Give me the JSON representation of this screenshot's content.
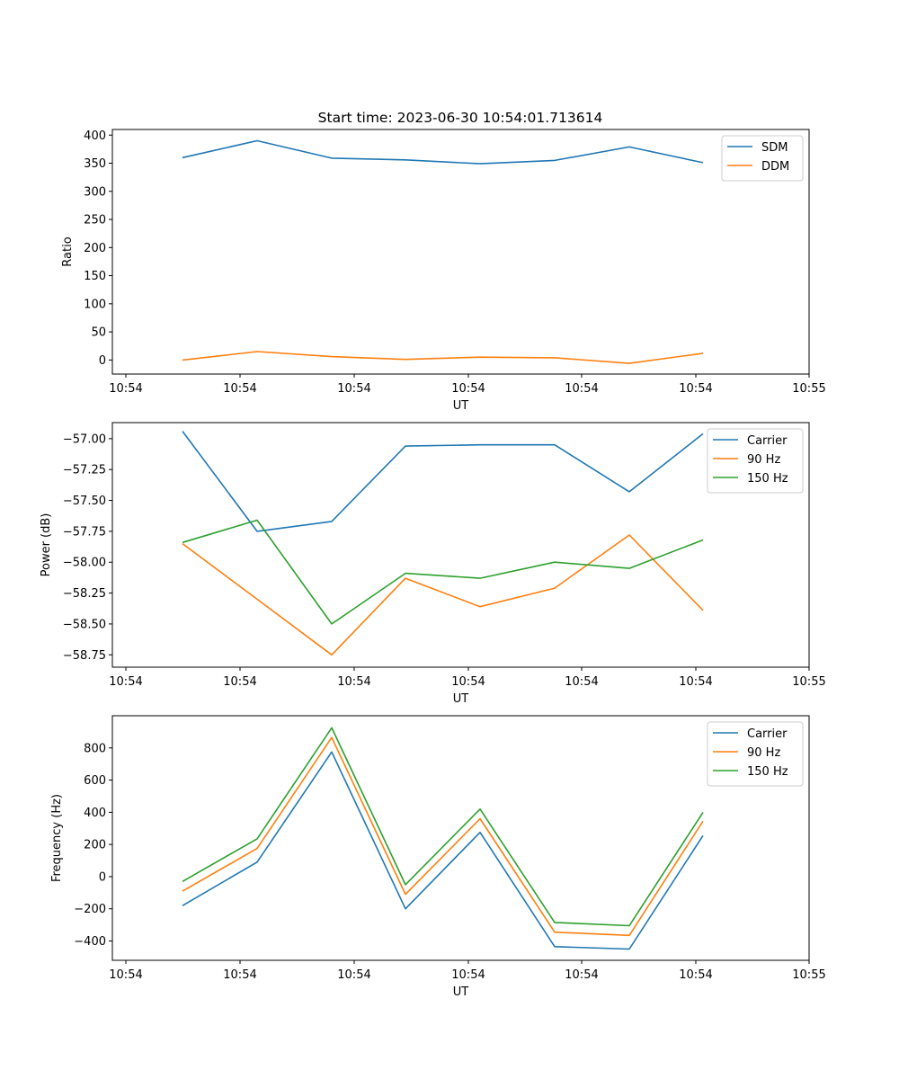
{
  "title": "Start time: 2023-06-30 10:54:01.713614",
  "colors": {
    "blue": "#1f77b4",
    "orange": "#ff7f0e",
    "green": "#2ca02c"
  },
  "chart_data": [
    {
      "type": "line",
      "xlabel": "UT",
      "ylabel": "Ratio",
      "x_tick_labels": [
        "10:54",
        "10:54",
        "10:54",
        "10:54",
        "10:54",
        "10:54",
        "10:55"
      ],
      "y_ticks": [
        0,
        50,
        100,
        150,
        200,
        250,
        300,
        350,
        400
      ],
      "y_tick_labels": [
        "0",
        "50",
        "100",
        "150",
        "200",
        "250",
        "300",
        "350",
        "400"
      ],
      "ylim": [
        -25,
        410
      ],
      "legend": "top-right",
      "grid": false,
      "series": [
        {
          "name": "SDM",
          "color": "#1f77b4",
          "values": [
            360,
            390,
            359,
            356,
            349,
            355,
            379,
            351
          ]
        },
        {
          "name": "DDM",
          "color": "#ff7f0e",
          "values": [
            0,
            15,
            6,
            1,
            5,
            4,
            -6,
            12
          ]
        }
      ]
    },
    {
      "type": "line",
      "xlabel": "UT",
      "ylabel": "Power (dB)",
      "x_tick_labels": [
        "10:54",
        "10:54",
        "10:54",
        "10:54",
        "10:54",
        "10:54",
        "10:55"
      ],
      "y_ticks": [
        -57.0,
        -57.25,
        -57.5,
        -57.75,
        -58.0,
        -58.25,
        -58.5,
        -58.75
      ],
      "y_tick_labels": [
        "−57.00",
        "−57.25",
        "−57.50",
        "−57.75",
        "−58.00",
        "−58.25",
        "−58.50",
        "−58.75"
      ],
      "ylim": [
        -58.85,
        -56.87
      ],
      "legend": "top-right",
      "grid": false,
      "series": [
        {
          "name": "Carrier",
          "color": "#1f77b4",
          "values": [
            -56.94,
            -57.75,
            -57.67,
            -57.06,
            -57.05,
            -57.05,
            -57.43,
            -56.96
          ]
        },
        {
          "name": "90 Hz",
          "color": "#ff7f0e",
          "values": [
            -57.85,
            -58.3,
            -58.75,
            -58.13,
            -58.36,
            -58.21,
            -57.78,
            -58.39
          ]
        },
        {
          "name": "150 Hz",
          "color": "#2ca02c",
          "values": [
            -57.84,
            -57.66,
            -58.5,
            -58.09,
            -58.13,
            -58.0,
            -58.05,
            -57.82
          ]
        }
      ]
    },
    {
      "type": "line",
      "xlabel": "UT",
      "ylabel": "Frequency (Hz)",
      "x_tick_labels": [
        "10:54",
        "10:54",
        "10:54",
        "10:54",
        "10:54",
        "10:54",
        "10:55"
      ],
      "y_ticks": [
        -400,
        -200,
        0,
        200,
        400,
        600,
        800
      ],
      "y_tick_labels": [
        "−400",
        "−200",
        "0",
        "200",
        "400",
        "600",
        "800"
      ],
      "ylim": [
        -520,
        1000
      ],
      "legend": "top-right",
      "grid": false,
      "series": [
        {
          "name": "Carrier",
          "color": "#1f77b4",
          "values": [
            -180,
            90,
            775,
            -200,
            275,
            -435,
            -450,
            255
          ]
        },
        {
          "name": "90 Hz",
          "color": "#ff7f0e",
          "values": [
            -90,
            175,
            865,
            -110,
            360,
            -345,
            -365,
            345
          ]
        },
        {
          "name": "150 Hz",
          "color": "#2ca02c",
          "values": [
            -30,
            235,
            925,
            -50,
            420,
            -285,
            -305,
            400
          ]
        }
      ]
    }
  ]
}
